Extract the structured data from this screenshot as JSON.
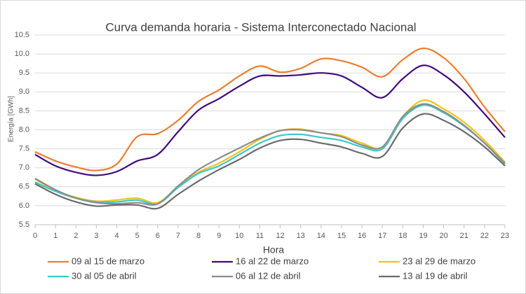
{
  "chart_data": {
    "type": "line",
    "title": "Curva demanda horaria - Sistema Interconectado Nacional",
    "x_label": "Hora",
    "y_label": "Energía [GWh]",
    "x": [
      0,
      1,
      2,
      3,
      4,
      5,
      6,
      7,
      8,
      9,
      10,
      11,
      12,
      13,
      14,
      15,
      16,
      17,
      18,
      19,
      20,
      21,
      22,
      23
    ],
    "xlim": [
      0,
      23
    ],
    "ylim": [
      5.5,
      10.5
    ],
    "yticks": [
      5.5,
      {
        "value": 6,
        "label": "6.0"
      },
      6.5,
      {
        "value": 7,
        "label": "7.0"
      },
      7.5,
      {
        "value": 8,
        "label": "8.0"
      },
      8.5,
      {
        "value": 9,
        "label": "9.0"
      },
      9.5,
      {
        "value": 10,
        "label": "10.0"
      },
      10.5
    ],
    "grid": true,
    "series": [
      {
        "name": "09 al 15 de marzo",
        "color": "#ed7d31",
        "values": [
          7.42,
          7.18,
          7.02,
          6.93,
          7.1,
          7.82,
          7.9,
          8.25,
          8.75,
          9.05,
          9.42,
          9.68,
          9.52,
          9.62,
          9.87,
          9.82,
          9.65,
          9.4,
          9.85,
          10.15,
          9.9,
          9.35,
          8.6,
          7.95
        ]
      },
      {
        "name": "16 al 22 de marzo",
        "color": "#3f0a7f",
        "values": [
          7.35,
          7.05,
          6.88,
          6.8,
          6.9,
          7.18,
          7.35,
          7.95,
          8.52,
          8.82,
          9.15,
          9.42,
          9.42,
          9.45,
          9.5,
          9.42,
          9.12,
          8.85,
          9.35,
          9.7,
          9.45,
          9.0,
          8.42,
          7.8
        ]
      },
      {
        "name": "23 al 29 de marzo",
        "color": "#f2c21b",
        "values": [
          6.7,
          6.4,
          6.22,
          6.12,
          6.15,
          6.2,
          6.08,
          6.5,
          6.88,
          7.12,
          7.42,
          7.75,
          7.98,
          8.02,
          7.92,
          7.85,
          7.65,
          7.55,
          8.35,
          8.78,
          8.55,
          8.2,
          7.72,
          7.15
        ]
      },
      {
        "name": "30 al 05 de abril",
        "color": "#3cc8c8",
        "values": [
          6.62,
          6.38,
          6.2,
          6.1,
          6.1,
          6.15,
          6.05,
          6.48,
          6.85,
          7.05,
          7.35,
          7.65,
          7.85,
          7.88,
          7.8,
          7.72,
          7.55,
          7.5,
          8.3,
          8.65,
          8.45,
          8.1,
          7.65,
          7.1
        ]
      },
      {
        "name": "06 al 12 de abril",
        "color": "#8c8c8c",
        "values": [
          6.72,
          6.42,
          6.2,
          6.08,
          6.05,
          6.08,
          6.05,
          6.52,
          6.95,
          7.25,
          7.52,
          7.78,
          7.98,
          8.0,
          7.92,
          7.82,
          7.6,
          7.55,
          8.35,
          8.68,
          8.48,
          8.12,
          7.65,
          7.12
        ]
      },
      {
        "name": "13 al 19 de abril",
        "color": "#6b6b6b",
        "values": [
          6.58,
          6.3,
          6.1,
          5.99,
          6.02,
          6.02,
          5.93,
          6.3,
          6.65,
          6.95,
          7.22,
          7.52,
          7.72,
          7.75,
          7.65,
          7.55,
          7.38,
          7.3,
          8.05,
          8.42,
          8.25,
          7.95,
          7.55,
          7.05
        ]
      }
    ]
  }
}
